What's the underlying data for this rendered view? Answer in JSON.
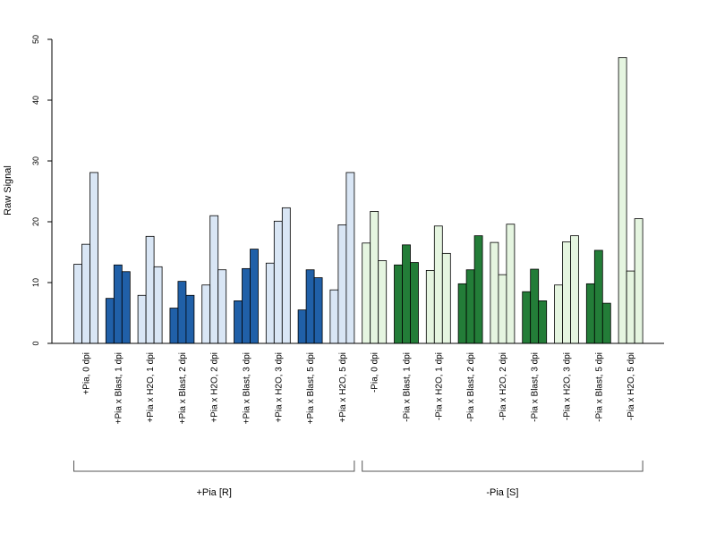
{
  "chart_data": {
    "type": "bar",
    "ylabel": "Raw Signal",
    "xlabel": "",
    "ylim": [
      0,
      50
    ],
    "yticks": [
      0,
      10,
      20,
      30,
      40,
      50
    ],
    "bars_per_group": 3,
    "colors": {
      "light_blue": "#d9e6f5",
      "dark_blue": "#2060a8",
      "light_green": "#e5f5e0",
      "dark_green": "#237d38",
      "edge": "#000000"
    },
    "groups": [
      {
        "label": "+Pia, 0 dpi",
        "values": [
          13,
          16.3,
          28.1
        ],
        "color": "light_blue"
      },
      {
        "label": "+Pia x Blast, 1 dpi",
        "values": [
          7.4,
          12.9,
          11.8
        ],
        "color": "dark_blue"
      },
      {
        "label": "+Pia x H2O, 1 dpi",
        "values": [
          7.9,
          17.6,
          12.6
        ],
        "color": "light_blue"
      },
      {
        "label": "+Pia x Blast, 2 dpi",
        "values": [
          5.8,
          10.2,
          7.9
        ],
        "color": "dark_blue"
      },
      {
        "label": "+Pia x H2O, 2 dpi",
        "values": [
          9.6,
          21,
          12.1
        ],
        "color": "light_blue"
      },
      {
        "label": "+Pia x Blast, 3 dpi",
        "values": [
          7,
          12.3,
          15.5
        ],
        "color": "dark_blue"
      },
      {
        "label": "+Pia x H2O, 3 dpi",
        "values": [
          13.2,
          20.1,
          22.3
        ],
        "color": "light_blue"
      },
      {
        "label": "+Pia x Blast, 5 dpi",
        "values": [
          5.5,
          12.1,
          10.8
        ],
        "color": "dark_blue"
      },
      {
        "label": "+Pia x H2O, 5 dpi",
        "values": [
          8.8,
          19.5,
          28.1
        ],
        "color": "light_blue"
      },
      {
        "label": "-Pia, 0 dpi",
        "values": [
          16.5,
          21.7,
          13.6
        ],
        "color": "light_green"
      },
      {
        "label": "-Pia x Blast, 1 dpi",
        "values": [
          12.9,
          16.2,
          13.3
        ],
        "color": "dark_green"
      },
      {
        "label": "-Pia x H2O, 1 dpi",
        "values": [
          12,
          19.3,
          14.8
        ],
        "color": "light_green"
      },
      {
        "label": "-Pia x Blast, 2 dpi",
        "values": [
          9.8,
          12.1,
          17.7
        ],
        "color": "dark_green"
      },
      {
        "label": "-Pia x H2O, 2 dpi",
        "values": [
          16.6,
          11.3,
          19.6
        ],
        "color": "light_green"
      },
      {
        "label": "-Pia x Blast, 3 dpi",
        "values": [
          8.5,
          12.2,
          7
        ],
        "color": "dark_green"
      },
      {
        "label": "-Pia x H2O, 3 dpi",
        "values": [
          9.6,
          16.7,
          17.7
        ],
        "color": "light_green"
      },
      {
        "label": "-Pia x Blast, 5 dpi",
        "values": [
          9.8,
          15.3,
          6.6
        ],
        "color": "dark_green"
      },
      {
        "label": "-Pia x H2O, 5 dpi",
        "values": [
          47,
          11.9,
          20.5
        ],
        "color": "light_green"
      }
    ],
    "brackets": [
      {
        "label": "+Pia [R]",
        "first_group": 0,
        "last_group": 8
      },
      {
        "label": "-Pia [S]",
        "first_group": 9,
        "last_group": 17
      }
    ]
  }
}
